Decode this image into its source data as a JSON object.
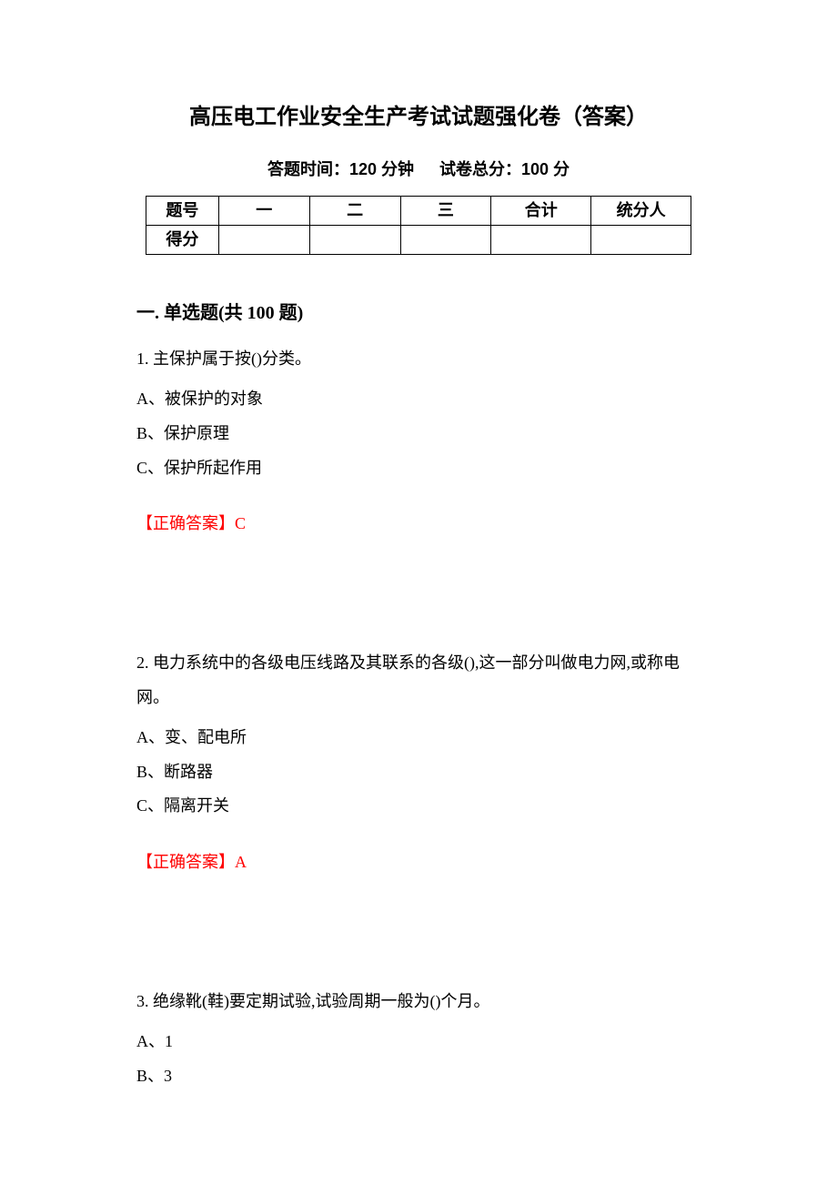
{
  "document": {
    "title": "高压电工作业安全生产考试试题强化卷（答案）",
    "subtitle_time_label": "答题时间：120 分钟",
    "subtitle_score_label": "试卷总分：100 分",
    "title_fontsize": 24,
    "subtitle_fontsize": 18,
    "body_fontsize": 18,
    "answer_color": "#ff0000",
    "text_color": "#000000",
    "background_color": "#ffffff"
  },
  "score_table": {
    "headers": [
      "题号",
      "一",
      "二",
      "三",
      "合计",
      "统分人"
    ],
    "row2_label": "得分",
    "border_color": "#000000",
    "column_count": 6,
    "row_count": 2
  },
  "section1": {
    "header": "一. 单选题(共 100 题)"
  },
  "q1": {
    "stem": "1. 主保护属于按()分类。",
    "optA": "A、被保护的对象",
    "optB": "B、保护原理",
    "optC": "C、保护所起作用",
    "answer_label": "【正确答案】",
    "answer_value": "C"
  },
  "q2": {
    "stem": "2. 电力系统中的各级电压线路及其联系的各级(),这一部分叫做电力网,或称电网。",
    "optA": "A、变、配电所",
    "optB": "B、断路器",
    "optC": "C、隔离开关",
    "answer_label": "【正确答案】",
    "answer_value": "A"
  },
  "q3": {
    "stem": "3. 绝缘靴(鞋)要定期试验,试验周期一般为()个月。",
    "optA": "A、1",
    "optB": "B、3"
  }
}
